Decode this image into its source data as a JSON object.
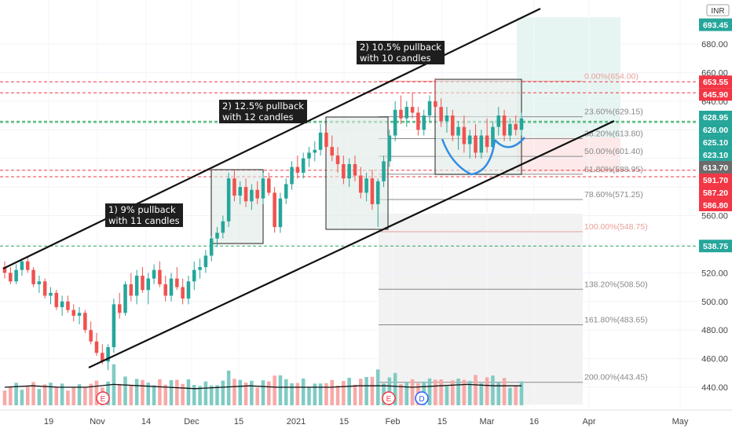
{
  "chart_data": {
    "type": "candlestick",
    "currency": "INR",
    "x_ticks": [
      "19",
      "Nov",
      "14",
      "Dec",
      "15",
      "2021",
      "15",
      "Feb",
      "15",
      "Mar",
      "16",
      "Apr",
      "May"
    ],
    "y_ticks": [
      440,
      460,
      480,
      500,
      520,
      540,
      560,
      580,
      600,
      620,
      640,
      660,
      680
    ],
    "ylim": [
      428,
      700
    ],
    "candles": [
      [
        524,
        528,
        516,
        520
      ],
      [
        520,
        524,
        512,
        514
      ],
      [
        514,
        526,
        512,
        522
      ],
      [
        522,
        530,
        518,
        528
      ],
      [
        528,
        532,
        520,
        522
      ],
      [
        522,
        524,
        510,
        512
      ],
      [
        512,
        518,
        506,
        514
      ],
      [
        514,
        516,
        502,
        504
      ],
      [
        504,
        510,
        498,
        506
      ],
      [
        506,
        508,
        494,
        496
      ],
      [
        496,
        504,
        490,
        500
      ],
      [
        500,
        504,
        492,
        494
      ],
      [
        494,
        498,
        486,
        490
      ],
      [
        490,
        496,
        484,
        492
      ],
      [
        492,
        494,
        478,
        480
      ],
      [
        480,
        486,
        470,
        472
      ],
      [
        472,
        478,
        462,
        464
      ],
      [
        464,
        470,
        456,
        458
      ],
      [
        458,
        470,
        452,
        468
      ],
      [
        468,
        502,
        464,
        498
      ],
      [
        498,
        506,
        488,
        492
      ],
      [
        492,
        514,
        490,
        512
      ],
      [
        512,
        520,
        500,
        504
      ],
      [
        504,
        522,
        498,
        518
      ],
      [
        518,
        524,
        506,
        508
      ],
      [
        508,
        520,
        498,
        516
      ],
      [
        516,
        526,
        512,
        522
      ],
      [
        522,
        528,
        510,
        512
      ],
      [
        512,
        518,
        500,
        504
      ],
      [
        504,
        520,
        500,
        516
      ],
      [
        516,
        524,
        508,
        510
      ],
      [
        510,
        516,
        498,
        502
      ],
      [
        502,
        518,
        498,
        514
      ],
      [
        514,
        528,
        508,
        522
      ],
      [
        522,
        530,
        516,
        524
      ],
      [
        524,
        536,
        520,
        532
      ],
      [
        532,
        546,
        528,
        544
      ],
      [
        544,
        552,
        538,
        548
      ],
      [
        548,
        560,
        544,
        556
      ],
      [
        556,
        590,
        552,
        586
      ],
      [
        586,
        592,
        570,
        574
      ],
      [
        574,
        584,
        568,
        580
      ],
      [
        580,
        586,
        566,
        570
      ],
      [
        570,
        582,
        564,
        578
      ],
      [
        578,
        584,
        568,
        572
      ],
      [
        572,
        590,
        568,
        586
      ],
      [
        586,
        590,
        574,
        576
      ],
      [
        576,
        580,
        548,
        552
      ],
      [
        552,
        576,
        548,
        572
      ],
      [
        572,
        586,
        568,
        582
      ],
      [
        582,
        598,
        578,
        594
      ],
      [
        594,
        602,
        586,
        590
      ],
      [
        590,
        604,
        586,
        600
      ],
      [
        600,
        608,
        594,
        604
      ],
      [
        604,
        612,
        598,
        606
      ],
      [
        606,
        624,
        602,
        618
      ],
      [
        618,
        622,
        604,
        608
      ],
      [
        608,
        616,
        598,
        602
      ],
      [
        602,
        608,
        590,
        596
      ],
      [
        596,
        602,
        582,
        586
      ],
      [
        586,
        600,
        580,
        596
      ],
      [
        596,
        602,
        584,
        588
      ],
      [
        588,
        594,
        572,
        576
      ],
      [
        576,
        590,
        570,
        586
      ],
      [
        586,
        592,
        564,
        568
      ],
      [
        568,
        586,
        552,
        584
      ],
      [
        584,
        602,
        580,
        598
      ],
      [
        598,
        620,
        594,
        616
      ],
      [
        616,
        640,
        612,
        634
      ],
      [
        634,
        644,
        624,
        628
      ],
      [
        628,
        640,
        622,
        636
      ],
      [
        636,
        646,
        628,
        632
      ],
      [
        632,
        636,
        616,
        620
      ],
      [
        620,
        634,
        616,
        630
      ],
      [
        630,
        644,
        626,
        640
      ],
      [
        640,
        656,
        632,
        636
      ],
      [
        636,
        642,
        622,
        626
      ],
      [
        626,
        636,
        618,
        630
      ],
      [
        630,
        634,
        612,
        616
      ],
      [
        616,
        626,
        606,
        622
      ],
      [
        622,
        630,
        604,
        610
      ],
      [
        610,
        620,
        600,
        616
      ],
      [
        616,
        624,
        600,
        604
      ],
      [
        604,
        620,
        600,
        616
      ],
      [
        616,
        628,
        604,
        608
      ],
      [
        608,
        626,
        604,
        622
      ],
      [
        622,
        636,
        616,
        630
      ],
      [
        630,
        634,
        612,
        616
      ],
      [
        616,
        628,
        612,
        624
      ],
      [
        624,
        630,
        616,
        620
      ],
      [
        620,
        632,
        616,
        628
      ]
    ],
    "volume_sma": [
      440,
      441,
      440,
      440,
      442,
      441,
      440,
      439,
      440,
      441,
      440,
      440,
      440,
      441,
      441,
      440,
      441,
      442,
      441,
      441
    ],
    "fibonacci": [
      {
        "label": "0.00%(654.00)",
        "price": 654.0,
        "color": "#e8a09a"
      },
      {
        "label": "23.60%(629.15)",
        "price": 629.15,
        "color": "#888888"
      },
      {
        "label": "38.20%(613.80)",
        "price": 613.8,
        "color": "#888888"
      },
      {
        "label": "50.00%(601.40)",
        "price": 601.4,
        "color": "#888888"
      },
      {
        "label": "61.80%(588.95)",
        "price": 588.95,
        "color": "#888888"
      },
      {
        "label": "78.60%(571.25)",
        "price": 571.25,
        "color": "#888888"
      },
      {
        "label": "100.00%(548.75)",
        "price": 548.75,
        "color": "#e8a09a"
      },
      {
        "label": "138.20%(508.50)",
        "price": 508.5,
        "color": "#888888"
      },
      {
        "label": "161.80%(483.65)",
        "price": 483.65,
        "color": "#888888"
      },
      {
        "label": "200.00%(443.45)",
        "price": 443.45,
        "color": "#888888"
      }
    ],
    "horizontal_levels": [
      {
        "price": 653.55,
        "style": "red"
      },
      {
        "price": 645.9,
        "style": "red"
      },
      {
        "price": 626.0,
        "style": "green"
      },
      {
        "price": 625.1,
        "style": "green"
      },
      {
        "price": 591.7,
        "style": "red"
      },
      {
        "price": 587.2,
        "style": "red"
      },
      {
        "price": 538.75,
        "style": "green"
      }
    ],
    "price_tags": [
      {
        "label": "693.45",
        "price": 693.45,
        "color": "#26a69a"
      },
      {
        "label": "653.55",
        "price": 653.55,
        "color": "#f23645"
      },
      {
        "label": "645.90",
        "price": 645.9,
        "color": "#f23645"
      },
      {
        "label": "628.95",
        "price": 628.95,
        "color": "#26a69a"
      },
      {
        "label": "626.00",
        "price": 626.0,
        "color": "#26a69a"
      },
      {
        "label": "625.10",
        "price": 625.1,
        "color": "#26a69a"
      },
      {
        "label": "623.10",
        "price": 623.1,
        "color": "#26a69a"
      },
      {
        "label": "613.70",
        "price": 613.7,
        "color": "#6b6b6b"
      },
      {
        "label": "591.70",
        "price": 591.7,
        "color": "#f23645"
      },
      {
        "label": "587.20",
        "price": 587.2,
        "color": "#f23645"
      },
      {
        "label": "586.80",
        "price": 586.8,
        "color": "#f23645"
      },
      {
        "label": "538.75",
        "price": 538.75,
        "color": "#26a69a"
      }
    ],
    "event_markers": [
      "E",
      "E",
      "D"
    ],
    "colors": {
      "up": "#26a69a",
      "down": "#ef5350",
      "up_volume": "#80cbc4",
      "down_volume": "#f7a9a7"
    }
  },
  "annotations": [
    {
      "line1": "1) 9% pullback",
      "line2": "with 11 candles"
    },
    {
      "line1": "2) 12.5% pullback",
      "line2": "with 12 candles"
    },
    {
      "line1": "2) 10.5% pullback",
      "line2": "with 10 candles"
    }
  ],
  "currency_badge": "INR"
}
